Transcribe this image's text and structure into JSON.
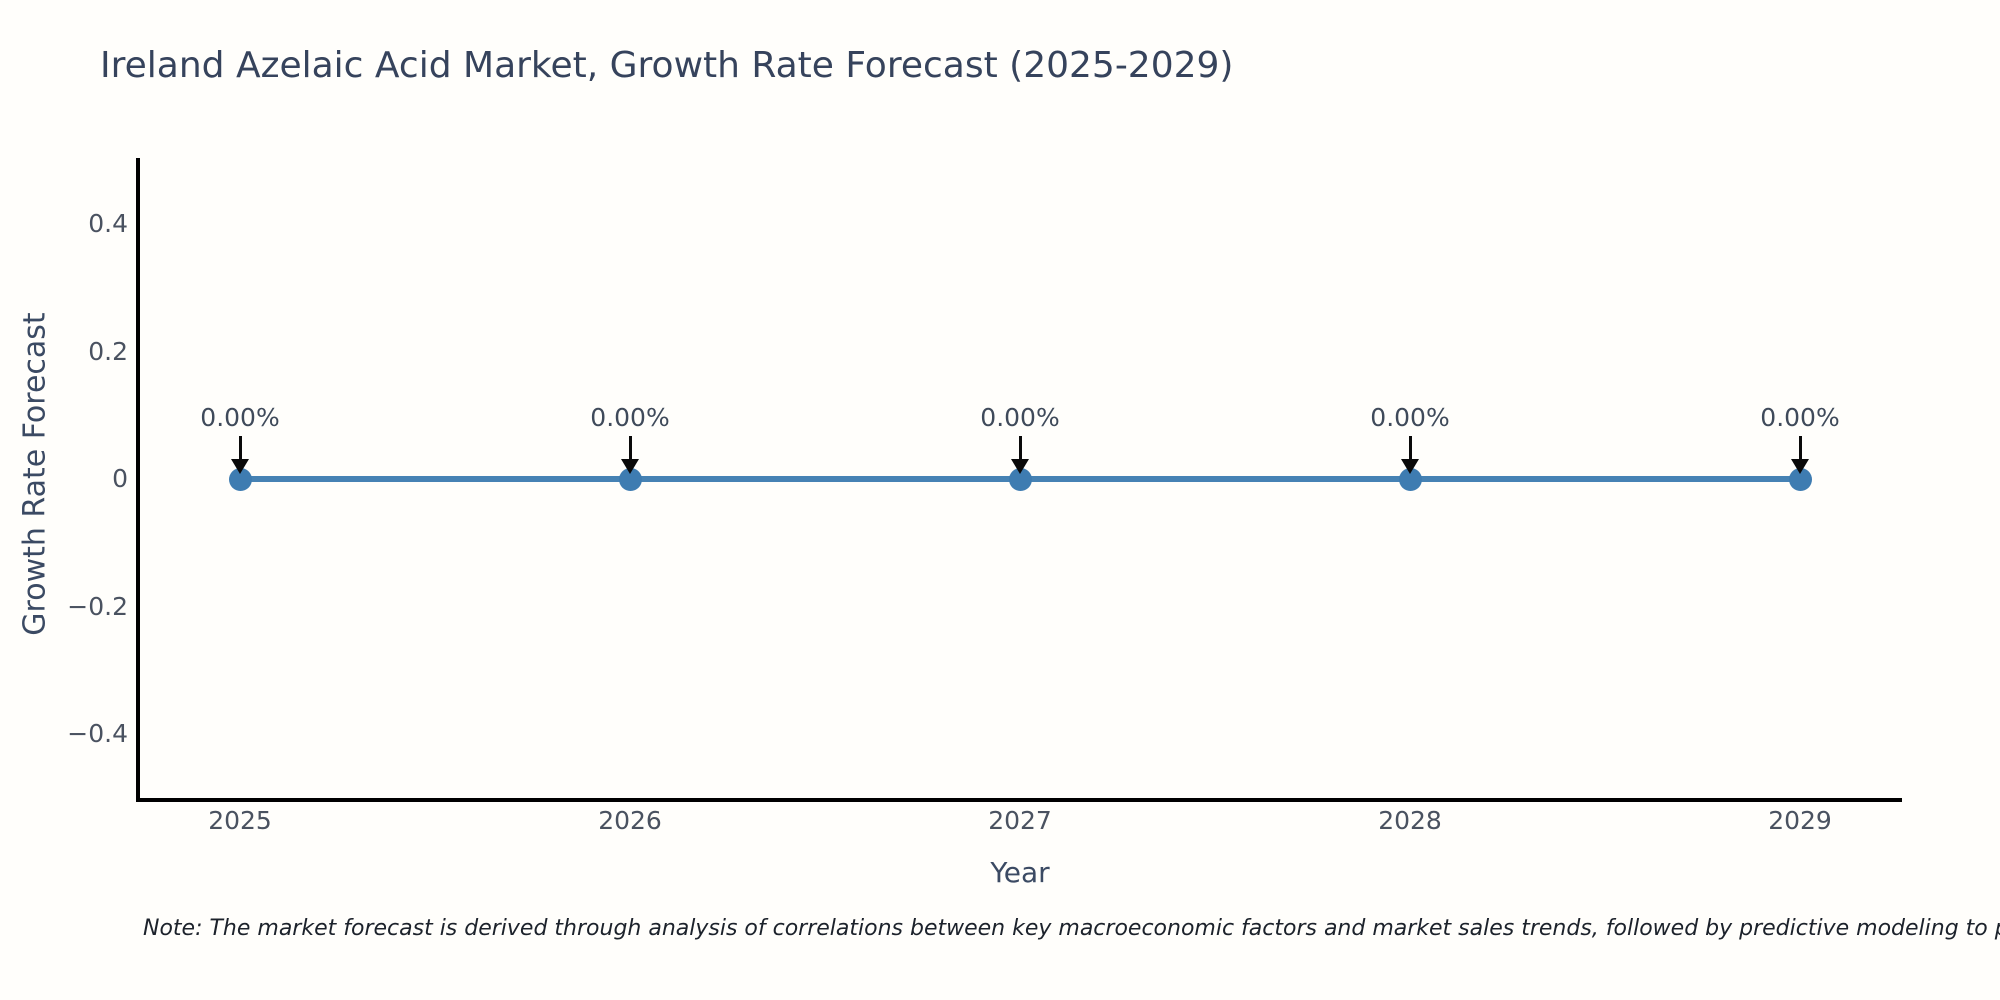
{
  "chart_data": {
    "type": "line",
    "title": "Ireland Azelaic Acid Market, Growth Rate Forecast (2025-2029)",
    "x": [
      2025,
      2026,
      2027,
      2028,
      2029
    ],
    "values": [
      0,
      0,
      0,
      0,
      0
    ],
    "point_labels": [
      "0.00%",
      "0.00%",
      "0.00%",
      "0.00%",
      "0.00%"
    ],
    "xtick_labels": [
      "2025",
      "2026",
      "2027",
      "2028",
      "2029"
    ],
    "yticks": [
      0.4,
      0.2,
      0,
      -0.2,
      -0.4
    ],
    "ytick_labels": [
      "0.4",
      "0.2",
      "0",
      "−0.2",
      "−0.4"
    ],
    "xlabel": "Year",
    "ylabel": "Growth Rate Forecast",
    "ylim": [
      -0.5,
      0.5
    ],
    "grid": false,
    "legend": "none",
    "line_color": "#4682b4",
    "marker_color": "#3e7cb1",
    "axis_color": "#000000",
    "annotation_arrow_color": "#0a0a0a"
  },
  "note": "Note: The market forecast is derived through analysis of correlations between key macroeconomic factors and market sales trends, followed by predictive modeling to project future sal"
}
